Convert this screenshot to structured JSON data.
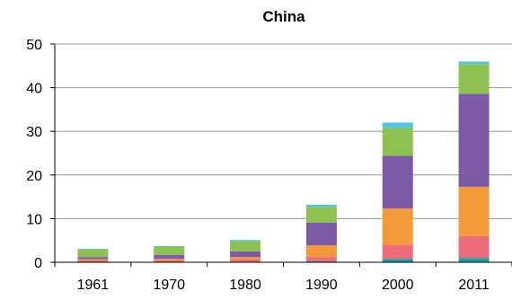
{
  "chart_data": {
    "type": "bar",
    "stacked": true,
    "title": "China",
    "xlabel": "",
    "ylabel": "",
    "categories": [
      "1961",
      "1970",
      "1980",
      "1990",
      "2000",
      "2011"
    ],
    "ylim": [
      0,
      50
    ],
    "yticks": [
      0,
      10,
      20,
      30,
      40,
      50
    ],
    "grid": true,
    "legend": "none",
    "series": [
      {
        "color": "#17a2a6",
        "values": [
          0.1,
          0.1,
          0.1,
          0.2,
          0.8,
          1.0
        ]
      },
      {
        "color": "#ee6b79",
        "values": [
          0.3,
          0.4,
          0.6,
          1.0,
          3.2,
          5.0
        ]
      },
      {
        "color": "#f39a3a",
        "values": [
          0.3,
          0.3,
          0.5,
          2.7,
          8.3,
          11.3
        ]
      },
      {
        "color": "#7c5ba6",
        "values": [
          0.5,
          0.9,
          1.3,
          5.2,
          12.1,
          21.3
        ]
      },
      {
        "color": "#8dc152",
        "values": [
          1.8,
          1.9,
          2.3,
          3.6,
          6.4,
          6.8
        ]
      },
      {
        "color": "#4fc3e8",
        "values": [
          0.1,
          0.1,
          0.3,
          0.5,
          1.2,
          0.6
        ]
      }
    ]
  }
}
